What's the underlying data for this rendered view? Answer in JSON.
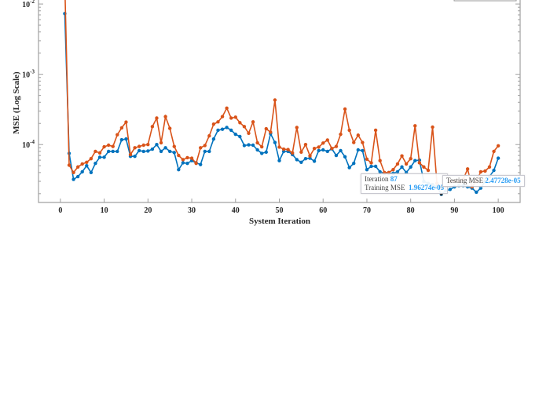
{
  "chart_data": {
    "type": "line",
    "xlabel": "System Iteration",
    "ylabel": "MSE (Log Scale)",
    "xlim": [
      -5,
      105
    ],
    "ylim": [
      1.5e-05,
      0.0114
    ],
    "yscale": "log",
    "xticks": [
      "0",
      "10",
      "20",
      "30",
      "40",
      "50",
      "60",
      "70",
      "80",
      "90",
      "100"
    ],
    "yticks": [
      {
        "base": "10",
        "exp": "-2",
        "value": 0.01
      },
      {
        "base": "10",
        "exp": "-3",
        "value": 0.001
      },
      {
        "base": "10",
        "exp": "-4",
        "value": 0.0001
      }
    ],
    "grid": false,
    "legend": "top-right (cropped)",
    "x": [
      1,
      2,
      3,
      4,
      5,
      6,
      7,
      8,
      9,
      10,
      11,
      12,
      13,
      14,
      15,
      16,
      17,
      18,
      19,
      20,
      21,
      22,
      23,
      24,
      25,
      26,
      27,
      28,
      29,
      30,
      31,
      32,
      33,
      34,
      35,
      36,
      37,
      38,
      39,
      40,
      41,
      42,
      43,
      44,
      45,
      46,
      47,
      48,
      49,
      50,
      51,
      52,
      53,
      54,
      55,
      56,
      57,
      58,
      59,
      60,
      61,
      62,
      63,
      64,
      65,
      66,
      67,
      68,
      69,
      70,
      71,
      72,
      73,
      74,
      75,
      76,
      77,
      78,
      79,
      80,
      81,
      82,
      83,
      84,
      85,
      86,
      87,
      88,
      89,
      90,
      91,
      92,
      93,
      94,
      95,
      96,
      97,
      98,
      99,
      100
    ],
    "series": [
      {
        "name": "Training MSE",
        "color": "#0072bd",
        "values": [
          0.0073,
          7.5e-05,
          3.2e-05,
          3.5e-05,
          4.1e-05,
          5e-05,
          4e-05,
          5.4e-05,
          6.6e-05,
          6.6e-05,
          8e-05,
          8e-05,
          8e-05,
          0.000117,
          0.00012,
          6.8e-05,
          6.8e-05,
          8.2e-05,
          8e-05,
          8.1e-05,
          8.6e-05,
          0.0001,
          8e-05,
          9e-05,
          8e-05,
          7.7e-05,
          4.4e-05,
          5.5e-05,
          5.4e-05,
          5.9e-05,
          5.5e-05,
          5.2e-05,
          8e-05,
          8e-05,
          0.00012,
          0.00016,
          0.000165,
          0.000175,
          0.00016,
          0.00014,
          0.00013,
          9.7e-05,
          9.9e-05,
          9.8e-05,
          8.4e-05,
          7.5e-05,
          7.8e-05,
          0.000143,
          0.000107,
          5.9e-05,
          8e-05,
          8e-05,
          7.2e-05,
          6.1e-05,
          5.6e-05,
          6.3e-05,
          6.4e-05,
          5.8e-05,
          8.2e-05,
          8.4e-05,
          8e-05,
          8.7e-05,
          7e-05,
          8.2e-05,
          6.7e-05,
          4.7e-05,
          5.4e-05,
          8.4e-05,
          8.2e-05,
          4.4e-05,
          4.9e-05,
          4.9e-05,
          4.1e-05,
          3.9e-05,
          3.9e-05,
          3.9e-05,
          4.1e-05,
          4.8e-05,
          4e-05,
          4.8e-05,
          5.9e-05,
          6e-05,
          3e-05,
          2.8e-05,
          2.7e-05,
          2.5e-05,
          1.96274e-05,
          2.2e-05,
          2.3e-05,
          2.5e-05,
          2.6e-05,
          2.6e-05,
          2.5e-05,
          2.4e-05,
          2.1e-05,
          2.4e-05,
          3e-05,
          3.5e-05,
          4.3e-05,
          6.4e-05
        ]
      },
      {
        "name": "Testing MSE",
        "color": "#d95319",
        "values": [
          0.02,
          5.1e-05,
          4e-05,
          4.8e-05,
          5.3e-05,
          5.6e-05,
          6.3e-05,
          8e-05,
          7.6e-05,
          9.3e-05,
          9.8e-05,
          9.4e-05,
          0.000138,
          0.000173,
          0.000209,
          7.2e-05,
          9e-05,
          9.4e-05,
          9.8e-05,
          0.0001,
          0.00018,
          0.000238,
          0.000106,
          0.00025,
          0.00017,
          9.4e-05,
          7e-05,
          6.1e-05,
          6.5e-05,
          6.4e-05,
          5.4e-05,
          9e-05,
          9.7e-05,
          0.000133,
          0.000195,
          0.00021,
          0.00025,
          0.00033,
          0.000238,
          0.000245,
          0.000205,
          0.00018,
          0.000145,
          0.00021,
          0.000106,
          9.3e-05,
          0.000168,
          0.00015,
          0.00043,
          9.2e-05,
          8.6e-05,
          8.5e-05,
          7.6e-05,
          0.000175,
          7.8e-05,
          0.0001,
          6.9e-05,
          8.8e-05,
          9.2e-05,
          0.000105,
          0.000116,
          8.8e-05,
          9.4e-05,
          0.00014,
          0.00032,
          0.00016,
          0.000107,
          0.000136,
          0.000107,
          6.2e-05,
          5.5e-05,
          0.00016,
          5.9e-05,
          4e-05,
          4e-05,
          4.4e-05,
          5.3e-05,
          6.9e-05,
          5.3e-05,
          6.3e-05,
          0.000185,
          5.5e-05,
          4.8e-05,
          4.3e-05,
          0.000177,
          2.8e-05,
          2.47728e-05,
          2.5e-05,
          3e-05,
          3e-05,
          3e-05,
          3.2e-05,
          4.5e-05,
          2.5e-05,
          3e-05,
          4.1e-05,
          4.2e-05,
          4.8e-05,
          8e-05,
          9.6e-05
        ]
      }
    ],
    "datatips": [
      {
        "iteration_label": "Iteration",
        "iteration": "87",
        "label": "Training MSE",
        "value": "1.96274e-05"
      },
      {
        "label": "Testing MSE",
        "value": "2.47728e-05"
      }
    ]
  }
}
